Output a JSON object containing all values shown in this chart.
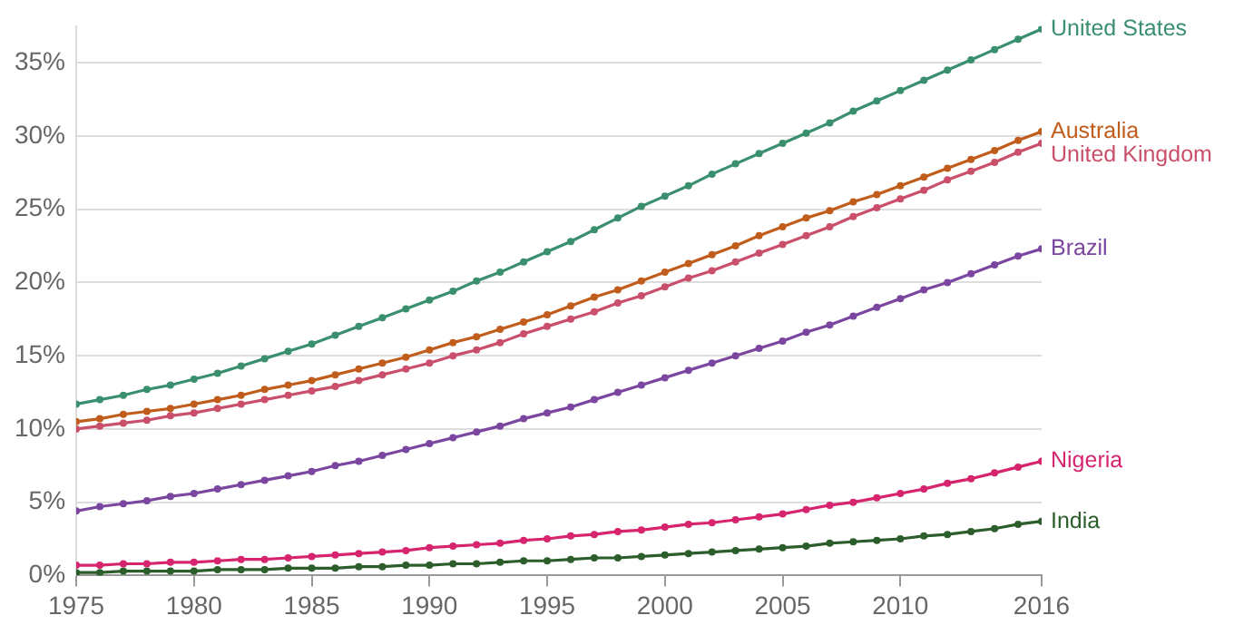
{
  "chart_data": {
    "type": "line",
    "x": [
      1975,
      1976,
      1977,
      1978,
      1979,
      1980,
      1981,
      1982,
      1983,
      1984,
      1985,
      1986,
      1987,
      1988,
      1989,
      1990,
      1991,
      1992,
      1993,
      1994,
      1995,
      1996,
      1997,
      1998,
      1999,
      2000,
      2001,
      2002,
      2003,
      2004,
      2005,
      2006,
      2007,
      2008,
      2009,
      2010,
      2011,
      2012,
      2013,
      2014,
      2015,
      2016
    ],
    "series": [
      {
        "name": "United States",
        "color": "#3a8f6e",
        "values": [
          11.7,
          12.0,
          12.3,
          12.7,
          13.0,
          13.4,
          13.8,
          14.3,
          14.8,
          15.3,
          15.8,
          16.4,
          17.0,
          17.6,
          18.2,
          18.8,
          19.4,
          20.1,
          20.7,
          21.4,
          22.1,
          22.8,
          23.6,
          24.4,
          25.2,
          25.9,
          26.6,
          27.4,
          28.1,
          28.8,
          29.5,
          30.2,
          30.9,
          31.7,
          32.4,
          33.1,
          33.8,
          34.5,
          35.2,
          35.9,
          36.6,
          37.3
        ]
      },
      {
        "name": "Australia",
        "color": "#c15d1c",
        "values": [
          10.5,
          10.7,
          11.0,
          11.2,
          11.4,
          11.7,
          12.0,
          12.3,
          12.7,
          13.0,
          13.3,
          13.7,
          14.1,
          14.5,
          14.9,
          15.4,
          15.9,
          16.3,
          16.8,
          17.3,
          17.8,
          18.4,
          19.0,
          19.5,
          20.1,
          20.7,
          21.3,
          21.9,
          22.5,
          23.2,
          23.8,
          24.4,
          24.9,
          25.5,
          26.0,
          26.6,
          27.2,
          27.8,
          28.4,
          29.0,
          29.7,
          30.3
        ]
      },
      {
        "name": "United Kingdom",
        "color": "#c94f6a",
        "values": [
          10.0,
          10.2,
          10.4,
          10.6,
          10.9,
          11.1,
          11.4,
          11.7,
          12.0,
          12.3,
          12.6,
          12.9,
          13.3,
          13.7,
          14.1,
          14.5,
          15.0,
          15.4,
          15.9,
          16.5,
          17.0,
          17.5,
          18.0,
          18.6,
          19.1,
          19.7,
          20.3,
          20.8,
          21.4,
          22.0,
          22.6,
          23.2,
          23.8,
          24.5,
          25.1,
          25.7,
          26.3,
          27.0,
          27.6,
          28.2,
          28.9,
          29.5
        ]
      },
      {
        "name": "Brazil",
        "color": "#7a46a0",
        "values": [
          4.4,
          4.7,
          4.9,
          5.1,
          5.4,
          5.6,
          5.9,
          6.2,
          6.5,
          6.8,
          7.1,
          7.5,
          7.8,
          8.2,
          8.6,
          9.0,
          9.4,
          9.8,
          10.2,
          10.7,
          11.1,
          11.5,
          12.0,
          12.5,
          13.0,
          13.5,
          14.0,
          14.5,
          15.0,
          15.5,
          16.0,
          16.6,
          17.1,
          17.7,
          18.3,
          18.9,
          19.5,
          20.0,
          20.6,
          21.2,
          21.8,
          22.3
        ]
      },
      {
        "name": "Nigeria",
        "color": "#d6246e",
        "values": [
          0.7,
          0.7,
          0.8,
          0.8,
          0.9,
          0.9,
          1.0,
          1.1,
          1.1,
          1.2,
          1.3,
          1.4,
          1.5,
          1.6,
          1.7,
          1.9,
          2.0,
          2.1,
          2.2,
          2.4,
          2.5,
          2.7,
          2.8,
          3.0,
          3.1,
          3.3,
          3.5,
          3.6,
          3.8,
          4.0,
          4.2,
          4.5,
          4.8,
          5.0,
          5.3,
          5.6,
          5.9,
          6.3,
          6.6,
          7.0,
          7.4,
          7.8
        ]
      },
      {
        "name": "India",
        "color": "#2b5e2b",
        "values": [
          0.2,
          0.2,
          0.3,
          0.3,
          0.3,
          0.3,
          0.4,
          0.4,
          0.4,
          0.5,
          0.5,
          0.5,
          0.6,
          0.6,
          0.7,
          0.7,
          0.8,
          0.8,
          0.9,
          1.0,
          1.0,
          1.1,
          1.2,
          1.2,
          1.3,
          1.4,
          1.5,
          1.6,
          1.7,
          1.8,
          1.9,
          2.0,
          2.2,
          2.3,
          2.4,
          2.5,
          2.7,
          2.8,
          3.0,
          3.2,
          3.5,
          3.7
        ]
      }
    ],
    "ylim": [
      0,
      37.5
    ],
    "xlim": [
      1975,
      2016
    ],
    "xticks": [
      1975,
      1980,
      1985,
      1990,
      1995,
      2000,
      2005,
      2010,
      2016
    ],
    "yticks": [
      {
        "value": 0,
        "label": "0%"
      },
      {
        "value": 5,
        "label": "5%"
      },
      {
        "value": 10,
        "label": "10%"
      },
      {
        "value": 15,
        "label": "15%"
      },
      {
        "value": 20,
        "label": "20%"
      },
      {
        "value": 25,
        "label": "25%"
      },
      {
        "value": 30,
        "label": "30%"
      },
      {
        "value": 35,
        "label": "35%"
      }
    ],
    "grid": "y",
    "marker": "circle",
    "line_style": "solid"
  }
}
